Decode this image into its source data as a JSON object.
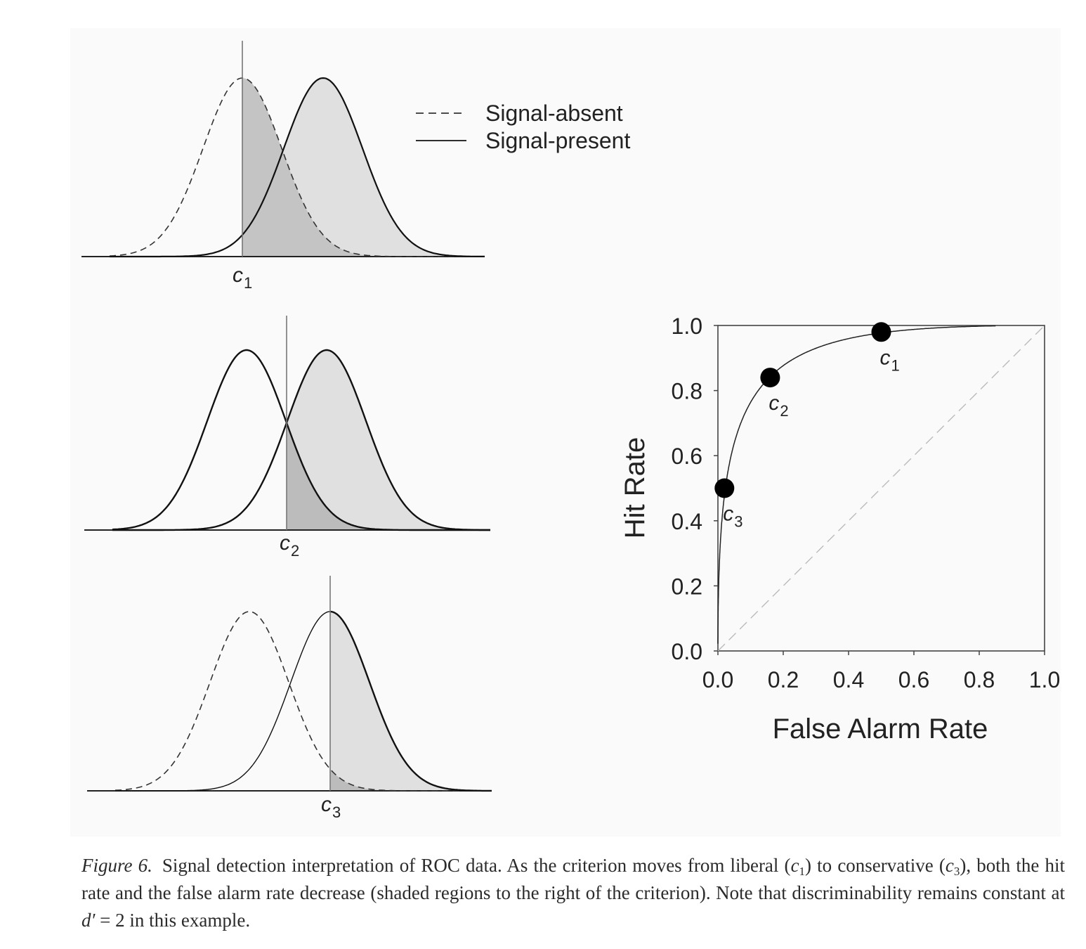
{
  "legend": {
    "absent_label": "Signal-absent",
    "present_label": "Signal-present"
  },
  "panels": [
    {
      "criterion_label": "c",
      "criterion_subscript": "1"
    },
    {
      "criterion_label": "c",
      "criterion_subscript": "2"
    },
    {
      "criterion_label": "c",
      "criterion_subscript": "3"
    }
  ],
  "chart_data": {
    "type": "line",
    "xlabel": "False Alarm Rate",
    "ylabel": "Hit Rate",
    "xlim": [
      0.0,
      1.0
    ],
    "ylim": [
      0.0,
      1.0
    ],
    "xticks": [
      "0.0",
      "0.2",
      "0.4",
      "0.6",
      "0.8",
      "1.0"
    ],
    "yticks": [
      "0.0",
      "0.2",
      "0.4",
      "0.6",
      "0.8",
      "1.0"
    ],
    "d_prime": 2,
    "curve_x_range": [
      0.0,
      0.85
    ],
    "points": [
      {
        "label": "c",
        "subscript": "1",
        "x": 0.5,
        "y": 0.98
      },
      {
        "label": "c",
        "subscript": "2",
        "x": 0.16,
        "y": 0.84
      },
      {
        "label": "c",
        "subscript": "3",
        "x": 0.02,
        "y": 0.5
      }
    ],
    "chance_line": true,
    "grid": false
  },
  "caption": {
    "figure_label": "Figure 6.",
    "text_1": "Signal detection interpretation of ROC data. As the criterion moves from liberal (",
    "c1_letter": "c",
    "c1_sub": "1",
    "text_2": ") to conservative (",
    "c3_letter": "c",
    "c3_sub": "3",
    "text_3": "), both the hit rate and the false alarm rate decrease (shaded regions to the right of the criterion). Note that discriminability remains constant at ",
    "dprime_symbol": "d′",
    "text_4": " = 2 in this example."
  }
}
